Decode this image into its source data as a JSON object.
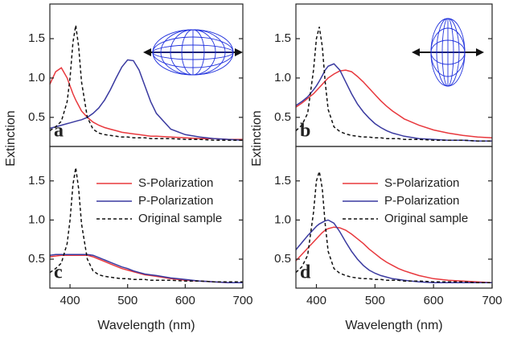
{
  "chart_data": [
    {
      "type": "line",
      "panel_label": "a",
      "y_label": "Extinction",
      "x": [
        365,
        375,
        385,
        395,
        400,
        405,
        410,
        415,
        420,
        430,
        440,
        450,
        460,
        470,
        480,
        490,
        500,
        510,
        520,
        530,
        540,
        550,
        575,
        600,
        625,
        650,
        675,
        700
      ],
      "xlim": [
        365,
        700
      ],
      "ylim": [
        0.13,
        1.94
      ],
      "yticks": [
        0.5,
        {
          "value": 1,
          "label": "1.0"
        },
        1.5
      ],
      "series": [
        {
          "color": "#e8383d",
          "line_style": "solid",
          "values": [
            0.92,
            1.08,
            1.13,
            1.0,
            0.9,
            0.8,
            0.72,
            0.65,
            0.58,
            0.5,
            0.44,
            0.4,
            0.37,
            0.35,
            0.33,
            0.31,
            0.3,
            0.29,
            0.28,
            0.27,
            0.26,
            0.26,
            0.25,
            0.24,
            0.23,
            0.23,
            0.22,
            0.22
          ]
        },
        {
          "color": "#3a3aa0",
          "line_style": "solid",
          "values": [
            0.36,
            0.38,
            0.4,
            0.42,
            0.43,
            0.44,
            0.45,
            0.46,
            0.47,
            0.5,
            0.55,
            0.62,
            0.72,
            0.85,
            1.0,
            1.14,
            1.23,
            1.22,
            1.1,
            0.9,
            0.7,
            0.55,
            0.35,
            0.28,
            0.25,
            0.23,
            0.22,
            0.21
          ]
        },
        {
          "color": "#111111",
          "line_style": "dashed",
          "values": [
            0.33,
            0.38,
            0.45,
            0.7,
            1.0,
            1.45,
            1.67,
            1.4,
            0.95,
            0.5,
            0.35,
            0.3,
            0.28,
            0.27,
            0.26,
            0.25,
            0.25,
            0.24,
            0.24,
            0.24,
            0.23,
            0.23,
            0.23,
            0.22,
            0.22,
            0.21,
            0.21,
            0.21
          ]
        }
      ]
    },
    {
      "type": "line",
      "panel_label": "b",
      "y_label": "Extinction",
      "x": [
        365,
        375,
        385,
        395,
        400,
        405,
        410,
        415,
        420,
        430,
        440,
        450,
        460,
        470,
        480,
        490,
        500,
        510,
        520,
        530,
        540,
        550,
        575,
        600,
        625,
        650,
        675,
        700
      ],
      "xlim": [
        365,
        700
      ],
      "ylim": [
        0.13,
        1.94
      ],
      "yticks": [
        0.5,
        {
          "value": 1,
          "label": "1.0"
        },
        1.5
      ],
      "series": [
        {
          "color": "#e8383d",
          "line_style": "solid",
          "values": [
            0.63,
            0.68,
            0.74,
            0.8,
            0.84,
            0.88,
            0.92,
            0.96,
            1.0,
            1.05,
            1.09,
            1.1,
            1.08,
            1.02,
            0.95,
            0.87,
            0.79,
            0.71,
            0.64,
            0.58,
            0.53,
            0.48,
            0.4,
            0.34,
            0.3,
            0.27,
            0.25,
            0.24
          ]
        },
        {
          "color": "#3a3aa0",
          "line_style": "solid",
          "values": [
            0.65,
            0.7,
            0.76,
            0.85,
            0.9,
            0.96,
            1.03,
            1.1,
            1.15,
            1.18,
            1.1,
            0.95,
            0.8,
            0.67,
            0.57,
            0.49,
            0.42,
            0.37,
            0.33,
            0.3,
            0.28,
            0.26,
            0.23,
            0.22,
            0.21,
            0.21,
            0.2,
            0.2
          ]
        },
        {
          "color": "#111111",
          "line_style": "dashed",
          "values": [
            0.33,
            0.4,
            0.55,
            1.1,
            1.5,
            1.65,
            1.4,
            0.95,
            0.6,
            0.38,
            0.32,
            0.29,
            0.27,
            0.26,
            0.25,
            0.25,
            0.24,
            0.24,
            0.23,
            0.23,
            0.23,
            0.22,
            0.22,
            0.21,
            0.21,
            0.21,
            0.2,
            0.2
          ]
        }
      ]
    },
    {
      "type": "line",
      "panel_label": "c",
      "x_label": "Wavelength (nm)",
      "legend": "upper right",
      "x": [
        365,
        375,
        385,
        395,
        400,
        405,
        410,
        415,
        420,
        430,
        440,
        450,
        460,
        470,
        480,
        490,
        500,
        510,
        520,
        530,
        540,
        550,
        575,
        600,
        625,
        650,
        675,
        700
      ],
      "xlim": [
        365,
        700
      ],
      "ylim": [
        0.13,
        1.94
      ],
      "yticks": [
        0.5,
        {
          "value": 1,
          "label": "1.0"
        },
        1.5
      ],
      "xticks": [
        400,
        500,
        600,
        700
      ],
      "series": [
        {
          "name": "S-Polarization",
          "color": "#e8383d",
          "line_style": "solid",
          "values": [
            0.53,
            0.54,
            0.55,
            0.55,
            0.55,
            0.55,
            0.55,
            0.55,
            0.55,
            0.55,
            0.53,
            0.5,
            0.47,
            0.44,
            0.41,
            0.38,
            0.36,
            0.34,
            0.32,
            0.3,
            0.29,
            0.28,
            0.25,
            0.23,
            0.22,
            0.21,
            0.2,
            0.2
          ]
        },
        {
          "name": "P-Polarization",
          "color": "#3a3aa0",
          "line_style": "solid",
          "values": [
            0.55,
            0.56,
            0.56,
            0.56,
            0.56,
            0.56,
            0.56,
            0.56,
            0.56,
            0.56,
            0.55,
            0.52,
            0.49,
            0.46,
            0.43,
            0.4,
            0.38,
            0.35,
            0.33,
            0.31,
            0.3,
            0.29,
            0.26,
            0.24,
            0.22,
            0.21,
            0.2,
            0.2
          ]
        },
        {
          "name": "Original sample",
          "color": "#111111",
          "line_style": "dashed",
          "values": [
            0.33,
            0.38,
            0.45,
            0.7,
            1.0,
            1.45,
            1.67,
            1.4,
            0.95,
            0.5,
            0.35,
            0.3,
            0.28,
            0.27,
            0.26,
            0.25,
            0.25,
            0.24,
            0.24,
            0.24,
            0.23,
            0.23,
            0.23,
            0.22,
            0.22,
            0.21,
            0.21,
            0.21
          ]
        }
      ]
    },
    {
      "type": "line",
      "panel_label": "d",
      "x_label": "Wavelength (nm)",
      "legend": "upper right",
      "x": [
        365,
        375,
        385,
        395,
        400,
        405,
        410,
        415,
        420,
        430,
        440,
        450,
        460,
        470,
        480,
        490,
        500,
        510,
        520,
        530,
        540,
        550,
        575,
        600,
        625,
        650,
        675,
        700
      ],
      "xlim": [
        365,
        700
      ],
      "ylim": [
        0.13,
        1.94
      ],
      "yticks": [
        0.5,
        {
          "value": 1,
          "label": "1.0"
        },
        1.5
      ],
      "xticks": [
        400,
        500,
        600,
        700
      ],
      "series": [
        {
          "name": "S-Polarization",
          "color": "#e8383d",
          "line_style": "solid",
          "values": [
            0.48,
            0.56,
            0.64,
            0.72,
            0.76,
            0.8,
            0.84,
            0.87,
            0.89,
            0.91,
            0.9,
            0.87,
            0.82,
            0.76,
            0.7,
            0.63,
            0.57,
            0.51,
            0.46,
            0.42,
            0.38,
            0.35,
            0.29,
            0.25,
            0.23,
            0.22,
            0.21,
            0.2
          ]
        },
        {
          "name": "P-Polarization",
          "color": "#3a3aa0",
          "line_style": "solid",
          "values": [
            0.62,
            0.71,
            0.8,
            0.88,
            0.92,
            0.95,
            0.97,
            0.99,
            1.0,
            0.96,
            0.85,
            0.72,
            0.6,
            0.5,
            0.42,
            0.36,
            0.32,
            0.29,
            0.27,
            0.25,
            0.24,
            0.23,
            0.21,
            0.2,
            0.2,
            0.2,
            0.2,
            0.2
          ]
        },
        {
          "name": "Original sample",
          "color": "#111111",
          "line_style": "dashed",
          "values": [
            0.33,
            0.4,
            0.55,
            1.1,
            1.5,
            1.62,
            1.4,
            0.95,
            0.6,
            0.38,
            0.32,
            0.29,
            0.27,
            0.26,
            0.25,
            0.25,
            0.24,
            0.24,
            0.23,
            0.23,
            0.23,
            0.22,
            0.22,
            0.21,
            0.21,
            0.21,
            0.2,
            0.2
          ]
        }
      ]
    }
  ]
}
